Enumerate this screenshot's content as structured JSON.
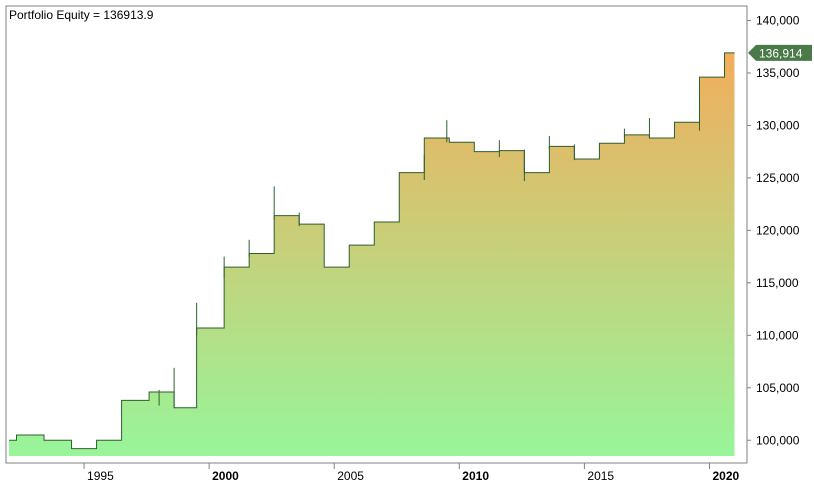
{
  "header": {
    "title": "Portfolio Equity = 136913.9"
  },
  "colors": {
    "line": "#2f5f2f",
    "fill_top": "#f2ad5c",
    "fill_bottom": "#98f59a",
    "last_value_tag": "#4a7a48",
    "axis_text": "#000000",
    "grid": "#808080"
  },
  "chart_data": {
    "type": "area",
    "title": "Portfolio Equity = 136913.9",
    "xlabel": "",
    "ylabel": "",
    "xlim": [
      1992.0,
      2021.3
    ],
    "ylim": [
      98500,
      141000
    ],
    "x_ticks": [
      {
        "value": 1995,
        "label": "1995",
        "bold": false
      },
      {
        "value": 2000,
        "label": "2000",
        "bold": true
      },
      {
        "value": 2005,
        "label": "2005",
        "bold": false
      },
      {
        "value": 2010,
        "label": "2010",
        "bold": true
      },
      {
        "value": 2015,
        "label": "2015",
        "bold": false
      },
      {
        "value": 2020,
        "label": "2020",
        "bold": true
      }
    ],
    "y_ticks": [
      {
        "value": 100000,
        "label": "100,000"
      },
      {
        "value": 105000,
        "label": "105,000"
      },
      {
        "value": 110000,
        "label": "110,000"
      },
      {
        "value": 115000,
        "label": "115,000"
      },
      {
        "value": 120000,
        "label": "120,000"
      },
      {
        "value": 125000,
        "label": "125,000"
      },
      {
        "value": 130000,
        "label": "130,000"
      },
      {
        "value": 135000,
        "label": "135,000"
      },
      {
        "value": 140000,
        "label": "140,000"
      }
    ],
    "last_value": 136913.9,
    "last_value_label": "136,914",
    "series": [
      {
        "step": true,
        "points": [
          {
            "x": 1992.0,
            "y": 100000
          },
          {
            "x": 1992.3,
            "y": 100500
          },
          {
            "x": 1993.4,
            "y": 100000
          },
          {
            "x": 1994.5,
            "y": 99200
          },
          {
            "x": 1995.5,
            "y": 100000
          },
          {
            "x": 1996.5,
            "y": 103800
          },
          {
            "x": 1997.6,
            "y": 104600
          },
          {
            "x": 1998.6,
            "y": 103100
          },
          {
            "x": 1999.5,
            "y": 110700
          },
          {
            "x": 2000.6,
            "y": 116500
          },
          {
            "x": 2001.6,
            "y": 117800
          },
          {
            "x": 2002.6,
            "y": 121400
          },
          {
            "x": 2003.6,
            "y": 120600
          },
          {
            "x": 2004.6,
            "y": 116500
          },
          {
            "x": 2005.6,
            "y": 118600
          },
          {
            "x": 2006.6,
            "y": 120800
          },
          {
            "x": 2007.6,
            "y": 125500
          },
          {
            "x": 2008.6,
            "y": 128800
          },
          {
            "x": 2009.6,
            "y": 128400
          },
          {
            "x": 2010.6,
            "y": 127500
          },
          {
            "x": 2011.6,
            "y": 127600
          },
          {
            "x": 2012.6,
            "y": 125500
          },
          {
            "x": 2013.6,
            "y": 128000
          },
          {
            "x": 2014.6,
            "y": 126800
          },
          {
            "x": 2015.6,
            "y": 128300
          },
          {
            "x": 2016.6,
            "y": 129100
          },
          {
            "x": 2017.6,
            "y": 128800
          },
          {
            "x": 2018.6,
            "y": 130300
          },
          {
            "x": 2019.6,
            "y": 134600
          },
          {
            "x": 2020.6,
            "y": 136914
          },
          {
            "x": 2021.0,
            "y": 136914
          }
        ],
        "spikes": [
          {
            "x": 1998.0,
            "low": 103300,
            "high": 104800
          },
          {
            "x": 1998.6,
            "low": 103100,
            "high": 106900
          },
          {
            "x": 1999.5,
            "low": 110000,
            "high": 113100
          },
          {
            "x": 2000.6,
            "low": 115400,
            "high": 117500
          },
          {
            "x": 2001.6,
            "low": 117500,
            "high": 119100
          },
          {
            "x": 2002.6,
            "low": 121000,
            "high": 124200
          },
          {
            "x": 2003.6,
            "low": 120400,
            "high": 121700
          },
          {
            "x": 2008.6,
            "low": 124800,
            "high": 127200
          },
          {
            "x": 2009.5,
            "low": 128400,
            "high": 130500
          },
          {
            "x": 2011.6,
            "low": 127000,
            "high": 128600
          },
          {
            "x": 2012.6,
            "low": 124700,
            "high": 127700
          },
          {
            "x": 2013.6,
            "low": 127700,
            "high": 129000
          },
          {
            "x": 2014.6,
            "low": 126700,
            "high": 128200
          },
          {
            "x": 2016.6,
            "low": 128900,
            "high": 129700
          },
          {
            "x": 2017.6,
            "low": 128800,
            "high": 130700
          },
          {
            "x": 2019.6,
            "low": 129500,
            "high": 130400
          },
          {
            "x": 2020.6,
            "low": 134700,
            "high": 136900
          }
        ]
      }
    ]
  }
}
